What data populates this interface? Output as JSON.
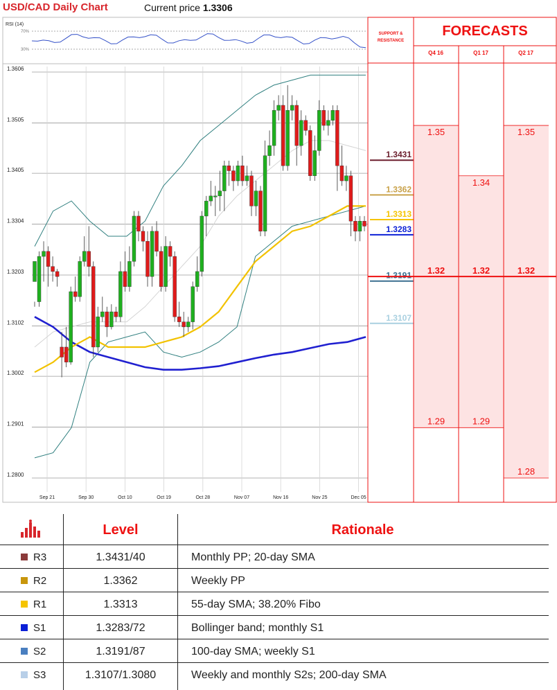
{
  "header": {
    "title": "USD/CAD Daily Chart",
    "price_label": "Current price",
    "price_value": "1.3306"
  },
  "chart_data": {
    "type": "candlestick",
    "title": "USD/CAD Daily Chart",
    "yticks": [
      "1.3606",
      "1.3505",
      "1.3405",
      "1.3304",
      "1.3203",
      "1.3102",
      "1.3002",
      "1.2901",
      "1.2800"
    ],
    "ylim": [
      1.28,
      1.3606
    ],
    "xticks": [
      "Sep 21",
      "Sep 30",
      "Oct 10",
      "Oct 19",
      "Oct 28",
      "Nov 07",
      "Nov 16",
      "Nov 25",
      "Dec 05"
    ],
    "grid": true,
    "rsi": {
      "label": "RSI (14)",
      "levels": [
        "70%",
        "30%"
      ]
    },
    "candles": [
      [
        1.319,
        1.323,
        1.315,
        1.314
      ],
      [
        1.315,
        1.324,
        1.325,
        1.314
      ],
      [
        1.324,
        1.325,
        1.327,
        1.319
      ],
      [
        1.325,
        1.322,
        1.326,
        1.318
      ],
      [
        1.322,
        1.321,
        1.324,
        1.319
      ],
      [
        1.321,
        1.32,
        1.3215,
        1.318
      ],
      [
        1.306,
        1.304,
        1.309,
        1.3
      ],
      [
        1.306,
        1.303,
        1.31,
        1.302
      ],
      [
        1.303,
        1.317,
        1.318,
        1.3025
      ],
      [
        1.317,
        1.316,
        1.32,
        1.315
      ],
      [
        1.316,
        1.323,
        1.324,
        1.315
      ],
      [
        1.323,
        1.325,
        1.328,
        1.322
      ],
      [
        1.325,
        1.322,
        1.33,
        1.32
      ],
      [
        1.322,
        1.306,
        1.323,
        1.304
      ],
      [
        1.306,
        1.312,
        1.314,
        1.305
      ],
      [
        1.312,
        1.313,
        1.316,
        1.311
      ],
      [
        1.313,
        1.31,
        1.314,
        1.308
      ],
      [
        1.31,
        1.313,
        1.3145,
        1.3095
      ],
      [
        1.313,
        1.312,
        1.314,
        1.311
      ],
      [
        1.312,
        1.321,
        1.323,
        1.311
      ],
      [
        1.321,
        1.318,
        1.325,
        1.317
      ],
      [
        1.318,
        1.323,
        1.326,
        1.317
      ],
      [
        1.323,
        1.332,
        1.333,
        1.322
      ],
      [
        1.332,
        1.329,
        1.333,
        1.327
      ],
      [
        1.329,
        1.327,
        1.33,
        1.325
      ],
      [
        1.327,
        1.32,
        1.329,
        1.318
      ],
      [
        1.32,
        1.329,
        1.33,
        1.318
      ],
      [
        1.329,
        1.325,
        1.331,
        1.324
      ],
      [
        1.325,
        1.318,
        1.326,
        1.317
      ],
      [
        1.318,
        1.326,
        1.328,
        1.317
      ],
      [
        1.326,
        1.324,
        1.327,
        1.322
      ],
      [
        1.324,
        1.312,
        1.325,
        1.311
      ],
      [
        1.312,
        1.311,
        1.315,
        1.31
      ],
      [
        1.311,
        1.31,
        1.313,
        1.308
      ],
      [
        1.31,
        1.311,
        1.312,
        1.309
      ],
      [
        1.311,
        1.318,
        1.319,
        1.3095
      ],
      [
        1.318,
        1.321,
        1.324,
        1.317
      ],
      [
        1.321,
        1.332,
        1.333,
        1.32
      ],
      [
        1.332,
        1.335,
        1.336,
        1.328
      ],
      [
        1.335,
        1.336,
        1.339,
        1.334
      ],
      [
        1.336,
        1.336,
        1.338,
        1.332
      ],
      [
        1.336,
        1.337,
        1.341,
        1.333
      ],
      [
        1.337,
        1.342,
        1.343,
        1.333
      ],
      [
        1.342,
        1.341,
        1.343,
        1.338
      ],
      [
        1.341,
        1.339,
        1.342,
        1.337
      ],
      [
        1.339,
        1.342,
        1.343,
        1.338
      ],
      [
        1.342,
        1.339,
        1.344,
        1.338
      ],
      [
        1.339,
        1.34,
        1.342,
        1.338
      ],
      [
        1.34,
        1.334,
        1.341,
        1.332
      ],
      [
        1.334,
        1.337,
        1.339,
        1.332
      ],
      [
        1.337,
        1.329,
        1.338,
        1.328
      ],
      [
        1.329,
        1.344,
        1.347,
        1.328
      ],
      [
        1.344,
        1.346,
        1.349,
        1.342
      ],
      [
        1.346,
        1.353,
        1.355,
        1.344
      ],
      [
        1.353,
        1.354,
        1.356,
        1.351
      ],
      [
        1.354,
        1.342,
        1.356,
        1.341
      ],
      [
        1.342,
        1.353,
        1.358,
        1.341
      ],
      [
        1.353,
        1.354,
        1.356,
        1.351
      ],
      [
        1.354,
        1.346,
        1.355,
        1.342
      ],
      [
        1.346,
        1.351,
        1.353,
        1.344
      ],
      [
        1.351,
        1.349,
        1.352,
        1.348
      ],
      [
        1.349,
        1.34,
        1.35,
        1.339
      ],
      [
        1.34,
        1.345,
        1.348,
        1.339
      ],
      [
        1.345,
        1.353,
        1.355,
        1.344
      ],
      [
        1.353,
        1.35,
        1.354,
        1.349
      ],
      [
        1.35,
        1.351,
        1.353,
        1.348
      ],
      [
        1.351,
        1.353,
        1.354,
        1.35
      ],
      [
        1.353,
        1.342,
        1.354,
        1.337
      ],
      [
        1.342,
        1.339,
        1.346,
        1.338
      ],
      [
        1.339,
        1.34,
        1.342,
        1.337
      ],
      [
        1.34,
        1.331,
        1.341,
        1.328
      ],
      [
        1.331,
        1.329,
        1.332,
        1.327
      ],
      [
        1.329,
        1.331,
        1.332,
        1.327
      ],
      [
        1.331,
        1.33,
        1.332,
        1.329
      ]
    ],
    "overlays": {
      "sma55": [
        1.301,
        1.303,
        1.306,
        1.308,
        1.306,
        1.306,
        1.306,
        1.307,
        1.308,
        1.31,
        1.313,
        1.318,
        1.323,
        1.326,
        1.329,
        1.33,
        1.332,
        1.334,
        1.334
      ],
      "sma200": [
        1.312,
        1.31,
        1.307,
        1.305,
        1.304,
        1.303,
        1.302,
        1.3015,
        1.3015,
        1.3018,
        1.3022,
        1.303,
        1.3038,
        1.3045,
        1.305,
        1.3058,
        1.3066,
        1.307,
        1.308
      ],
      "bb_upper": [
        1.326,
        1.333,
        1.335,
        1.331,
        1.328,
        1.328,
        1.331,
        1.338,
        1.342,
        1.347,
        1.35,
        1.353,
        1.356,
        1.358,
        1.359,
        1.36,
        1.36,
        1.36,
        1.36
      ],
      "bb_lower": [
        1.284,
        1.285,
        1.29,
        1.303,
        1.307,
        1.308,
        1.309,
        1.305,
        1.304,
        1.305,
        1.307,
        1.31,
        1.324,
        1.327,
        1.33,
        1.331,
        1.332,
        1.333,
        1.334
      ],
      "sma20": [
        1.306,
        1.309,
        1.31,
        1.311,
        1.311,
        1.311,
        1.314,
        1.318,
        1.322,
        1.326,
        1.332,
        1.336,
        1.339,
        1.342,
        1.345,
        1.347,
        1.347,
        1.346,
        1.345
      ]
    },
    "support_resistance": {
      "title": "SUPPORT & RESISTANCE",
      "levels": [
        {
          "value": "1.3431",
          "color": "#6b1d2c"
        },
        {
          "value": "1.3362",
          "color": "#c9a24a"
        },
        {
          "value": "1.3313",
          "color": "#f5c400"
        },
        {
          "value": "1.3283",
          "color": "#0b1fd6"
        },
        {
          "value": "1.3191",
          "color": "#3a6f8f"
        },
        {
          "value": "1.3107",
          "color": "#a9d0e0"
        }
      ]
    },
    "forecasts": {
      "title": "FORECASTS",
      "columns": [
        {
          "label": "Q4 16",
          "high": "1.35",
          "mid": "1.32",
          "low": "1.29",
          "high_val": 1.35,
          "low_val": 1.29
        },
        {
          "label": "Q1 17",
          "high": "1.34",
          "mid": "1.32",
          "low": "1.29",
          "high_val": 1.34,
          "low_val": 1.29
        },
        {
          "label": "Q2 17",
          "high": "1.35",
          "mid": "1.32",
          "low": "1.28",
          "high_val": 1.35,
          "low_val": 1.28
        }
      ]
    }
  },
  "table": {
    "header_level": "Level",
    "header_rationale": "Rationale",
    "rows": [
      {
        "label": "R3",
        "color": "#8b3a3a",
        "level": "1.3431/40",
        "rationale": "Monthly PP; 20-day SMA"
      },
      {
        "label": "R2",
        "color": "#c8960c",
        "level": "1.3362",
        "rationale": "Weekly PP"
      },
      {
        "label": "R1",
        "color": "#f5c400",
        "level": "1.3313",
        "rationale": "55-day SMA; 38.20% Fibo"
      },
      {
        "label": "S1",
        "color": "#0b1fd6",
        "level": "1.3283/72",
        "rationale": "Bollinger band; monthly S1"
      },
      {
        "label": "S2",
        "color": "#4a7fc0",
        "level": "1.3191/87",
        "rationale": "100-day SMA; weekly S1"
      },
      {
        "label": "S3",
        "color": "#b8cfe8",
        "level": "1.3107/1.3080",
        "rationale": "Weekly and monthly S2s; 200-day SMA"
      }
    ]
  }
}
